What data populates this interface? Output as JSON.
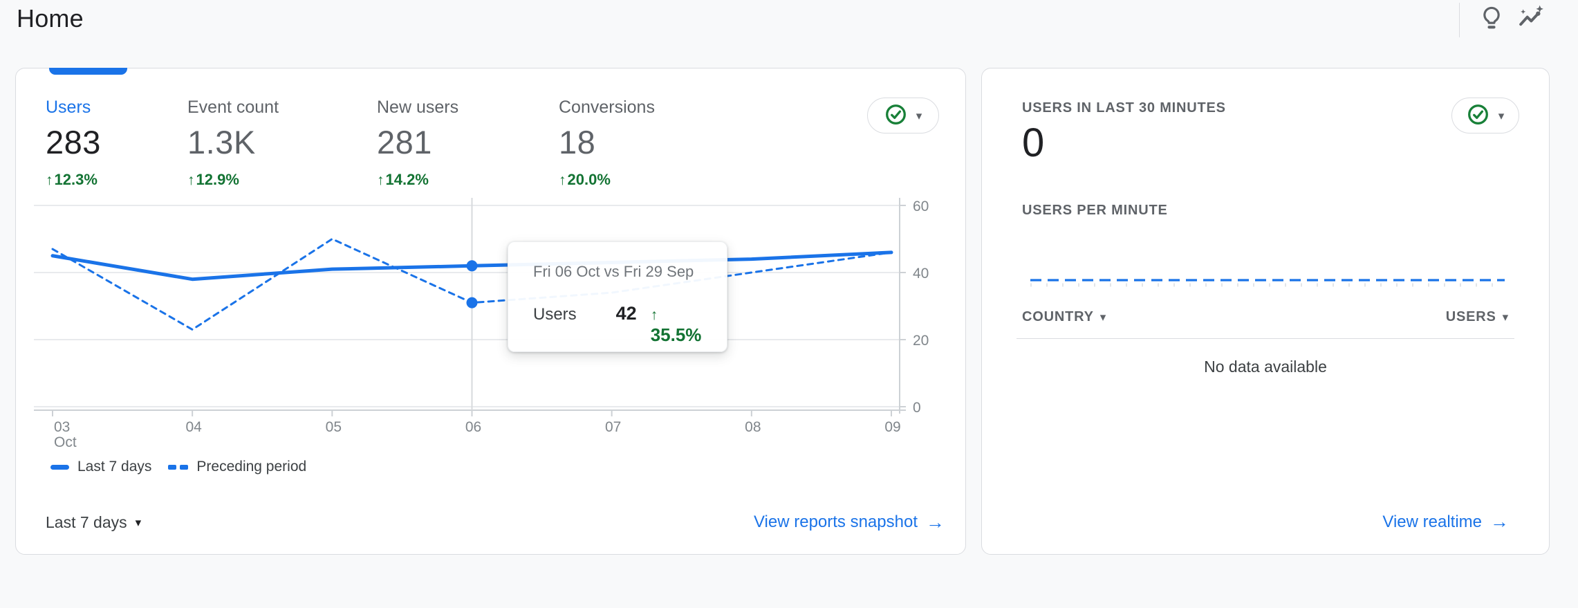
{
  "header": {
    "title": "Home"
  },
  "colors": {
    "accent_blue": "#1a73e8",
    "delta_green": "#137333",
    "check_green": "#188038",
    "text_dark": "#202124",
    "text_gray": "#5f6368",
    "axis_gray": "#80868b",
    "border": "#dadce0",
    "page_bg": "#f8f9fa"
  },
  "overview_card": {
    "metrics": [
      {
        "label": "Users",
        "value": "283",
        "delta": "12.3%",
        "selected": true
      },
      {
        "label": "Event count",
        "value": "1.3K",
        "delta": "12.9%",
        "selected": false
      },
      {
        "label": "New users",
        "value": "281",
        "delta": "14.2%",
        "selected": false
      },
      {
        "label": "Conversions",
        "value": "18",
        "delta": "20.0%",
        "selected": false
      }
    ],
    "status_button": {
      "state": "ok-check",
      "has_dropdown": true
    },
    "tooltip": {
      "title": "Fri 06 Oct vs Fri 29 Sep",
      "metric": "Users",
      "value": "42",
      "delta": "35.5%"
    },
    "date_range_label": "Last 7 days",
    "link_label": "View reports snapshot"
  },
  "realtime_card": {
    "title": "USERS IN LAST 30 MINUTES",
    "value": "0",
    "per_minute_title": "USERS PER MINUTE",
    "status_button": {
      "state": "ok-check",
      "has_dropdown": true
    },
    "table": {
      "columns": [
        "COUNTRY",
        "USERS"
      ],
      "empty_message": "No data available"
    },
    "link_label": "View realtime"
  },
  "chart_data": [
    {
      "type": "line",
      "title": "Users trend, last 7 days vs preceding period",
      "categories": [
        "03 Oct",
        "04",
        "05",
        "06",
        "07",
        "08",
        "09"
      ],
      "series": [
        {
          "name": "Last 7 days",
          "style": "solid",
          "values": [
            45,
            38,
            41,
            42,
            43,
            44,
            46
          ]
        },
        {
          "name": "Preceding period",
          "style": "dashed",
          "values": [
            47,
            23,
            50,
            31,
            34,
            40,
            46
          ]
        }
      ],
      "ylim": [
        0,
        60
      ],
      "yticks": [
        0,
        20,
        40,
        60
      ],
      "grid": true,
      "legend_position": "bottom",
      "hover_index": 3,
      "hover_values": {
        "Last 7 days": 42,
        "Preceding period": 31
      }
    },
    {
      "type": "line",
      "title": "USERS PER MINUTE",
      "x_span_minutes": 30,
      "values": [
        0,
        0,
        0,
        0,
        0,
        0,
        0,
        0,
        0,
        0,
        0,
        0,
        0,
        0,
        0,
        0,
        0,
        0,
        0,
        0,
        0,
        0,
        0,
        0,
        0,
        0,
        0,
        0,
        0,
        0
      ],
      "note_style": "flat dashed baseline"
    }
  ]
}
